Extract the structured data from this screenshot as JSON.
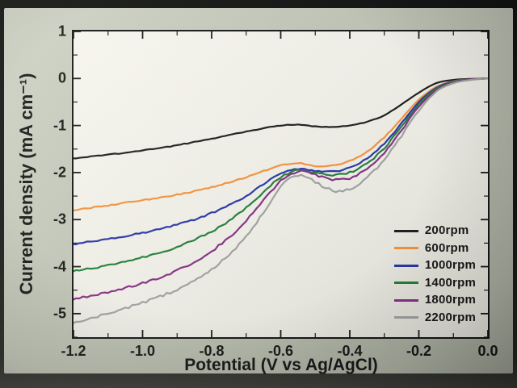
{
  "chart_data": {
    "type": "line",
    "title": "",
    "xlabel": "Potential (V vs Ag/AgCl)",
    "ylabel": "Current density (mA cm⁻¹)",
    "xlim": [
      -1.2,
      0.0
    ],
    "ylim": [
      -5.5,
      1.0
    ],
    "xticks": [
      -1.2,
      -1.0,
      -0.8,
      -0.6,
      -0.4,
      -0.2,
      0.0
    ],
    "xtick_labels": [
      "-1.2",
      "-1.0",
      "-0.8",
      "-0.6",
      "-0.4",
      "-0.2",
      "0.0"
    ],
    "yticks": [
      1,
      0,
      -1,
      -2,
      -3,
      -4,
      -5
    ],
    "ytick_labels": [
      "1",
      "0",
      "-1",
      "-2",
      "-3",
      "-4",
      "-5"
    ],
    "x_minor_step": 0.1,
    "y_minor_step": 0.5,
    "grid": false,
    "legend_position": "inside-right-bottom",
    "axis_color": "#141414",
    "x": [
      0.0,
      -0.05,
      -0.1,
      -0.15,
      -0.2,
      -0.25,
      -0.3,
      -0.35,
      -0.4,
      -0.45,
      -0.5,
      -0.55,
      -0.6,
      -0.65,
      -0.7,
      -0.75,
      -0.8,
      -0.85,
      -0.9,
      -0.95,
      -1.0,
      -1.05,
      -1.1,
      -1.15,
      -1.2
    ],
    "series": [
      {
        "name": "200rpm",
        "color": "#1a1a1a",
        "values": [
          0,
          -0.01,
          -0.03,
          -0.1,
          -0.3,
          -0.55,
          -0.78,
          -0.92,
          -1.0,
          -1.03,
          -1.02,
          -0.98,
          -1.0,
          -1.06,
          -1.13,
          -1.2,
          -1.28,
          -1.35,
          -1.42,
          -1.48,
          -1.53,
          -1.58,
          -1.62,
          -1.66,
          -1.7
        ]
      },
      {
        "name": "600rpm",
        "color": "#f6913a",
        "values": [
          0,
          -0.02,
          -0.06,
          -0.18,
          -0.45,
          -0.85,
          -1.25,
          -1.55,
          -1.75,
          -1.85,
          -1.86,
          -1.8,
          -1.85,
          -1.97,
          -2.1,
          -2.21,
          -2.31,
          -2.4,
          -2.47,
          -2.53,
          -2.59,
          -2.64,
          -2.7,
          -2.75,
          -2.8
        ]
      },
      {
        "name": "1000rpm",
        "color": "#2433a6",
        "values": [
          0,
          -0.02,
          -0.07,
          -0.2,
          -0.5,
          -0.95,
          -1.38,
          -1.7,
          -1.9,
          -1.98,
          -1.97,
          -1.92,
          -2.02,
          -2.25,
          -2.5,
          -2.7,
          -2.86,
          -3.0,
          -3.1,
          -3.2,
          -3.28,
          -3.35,
          -3.41,
          -3.46,
          -3.52
        ]
      },
      {
        "name": "1400rpm",
        "color": "#1e7d35",
        "values": [
          0,
          -0.02,
          -0.08,
          -0.22,
          -0.55,
          -1.02,
          -1.48,
          -1.8,
          -2.0,
          -2.05,
          -2.0,
          -1.95,
          -2.1,
          -2.42,
          -2.75,
          -3.03,
          -3.25,
          -3.43,
          -3.58,
          -3.7,
          -3.8,
          -3.89,
          -3.97,
          -4.04,
          -4.1
        ]
      },
      {
        "name": "1800rpm",
        "color": "#822d82",
        "values": [
          0,
          -0.02,
          -0.09,
          -0.25,
          -0.6,
          -1.1,
          -1.58,
          -1.92,
          -2.12,
          -2.15,
          -2.05,
          -1.98,
          -2.18,
          -2.6,
          -3.02,
          -3.38,
          -3.67,
          -3.9,
          -4.08,
          -4.23,
          -4.35,
          -4.45,
          -4.54,
          -4.62,
          -4.7
        ]
      },
      {
        "name": "2200rpm",
        "color": "#9da2a1",
        "values": [
          0,
          -0.03,
          -0.1,
          -0.28,
          -0.68,
          -1.22,
          -1.72,
          -2.1,
          -2.35,
          -2.38,
          -2.2,
          -2.05,
          -2.3,
          -2.85,
          -3.35,
          -3.75,
          -4.05,
          -4.3,
          -4.48,
          -4.64,
          -4.77,
          -4.89,
          -5.0,
          -5.1,
          -5.2
        ]
      }
    ]
  }
}
